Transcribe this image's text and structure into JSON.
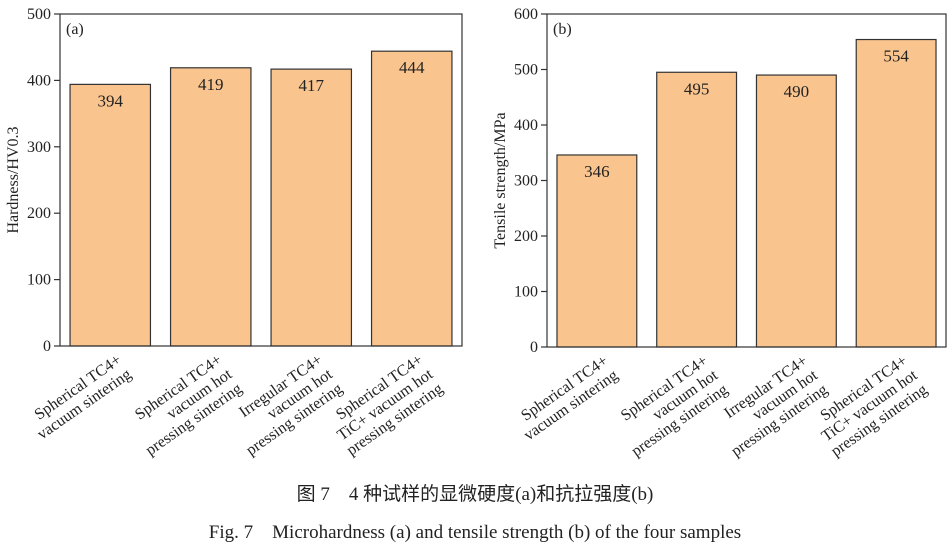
{
  "chart_data": [
    {
      "type": "bar",
      "panel_label": "(a)",
      "ylabel": "Hardness/HV0.3",
      "categories": [
        "Spherical TC4+\nvacuum sintering",
        "Spherical TC4+\nvacuum hot\npressing sintering",
        "Irregular TC4+\nvacuum hot\npressing sintering",
        "Spherical TC4+\nTiC+ vacuum hot\npressing sintering"
      ],
      "values": [
        394,
        419,
        417,
        444
      ],
      "color": "#f9c48e",
      "ylim": [
        0,
        500
      ],
      "yticks": [
        0,
        100,
        200,
        300,
        400,
        500
      ]
    },
    {
      "type": "bar",
      "panel_label": "(b)",
      "ylabel": "Tensile strength/MPa",
      "categories": [
        "Spherical TC4+\nvacuum sintering",
        "Spherical TC4+\nvacuum hot\npressing sintering",
        "Irregular TC4+\nvacuum hot\npressing sintering",
        "Spherical TC4+\nTiC+ vacuum hot\npressing sintering"
      ],
      "values": [
        346,
        495,
        490,
        554
      ],
      "color": "#f9c48e",
      "ylim": [
        0,
        600
      ],
      "yticks": [
        0,
        100,
        200,
        300,
        400,
        500,
        600
      ]
    }
  ],
  "caption": {
    "zh": "图 7　4 种试样的显微硬度(a)和抗拉强度(b)",
    "en": "Fig. 7　Microhardness (a) and tensile strength (b) of the four samples"
  }
}
